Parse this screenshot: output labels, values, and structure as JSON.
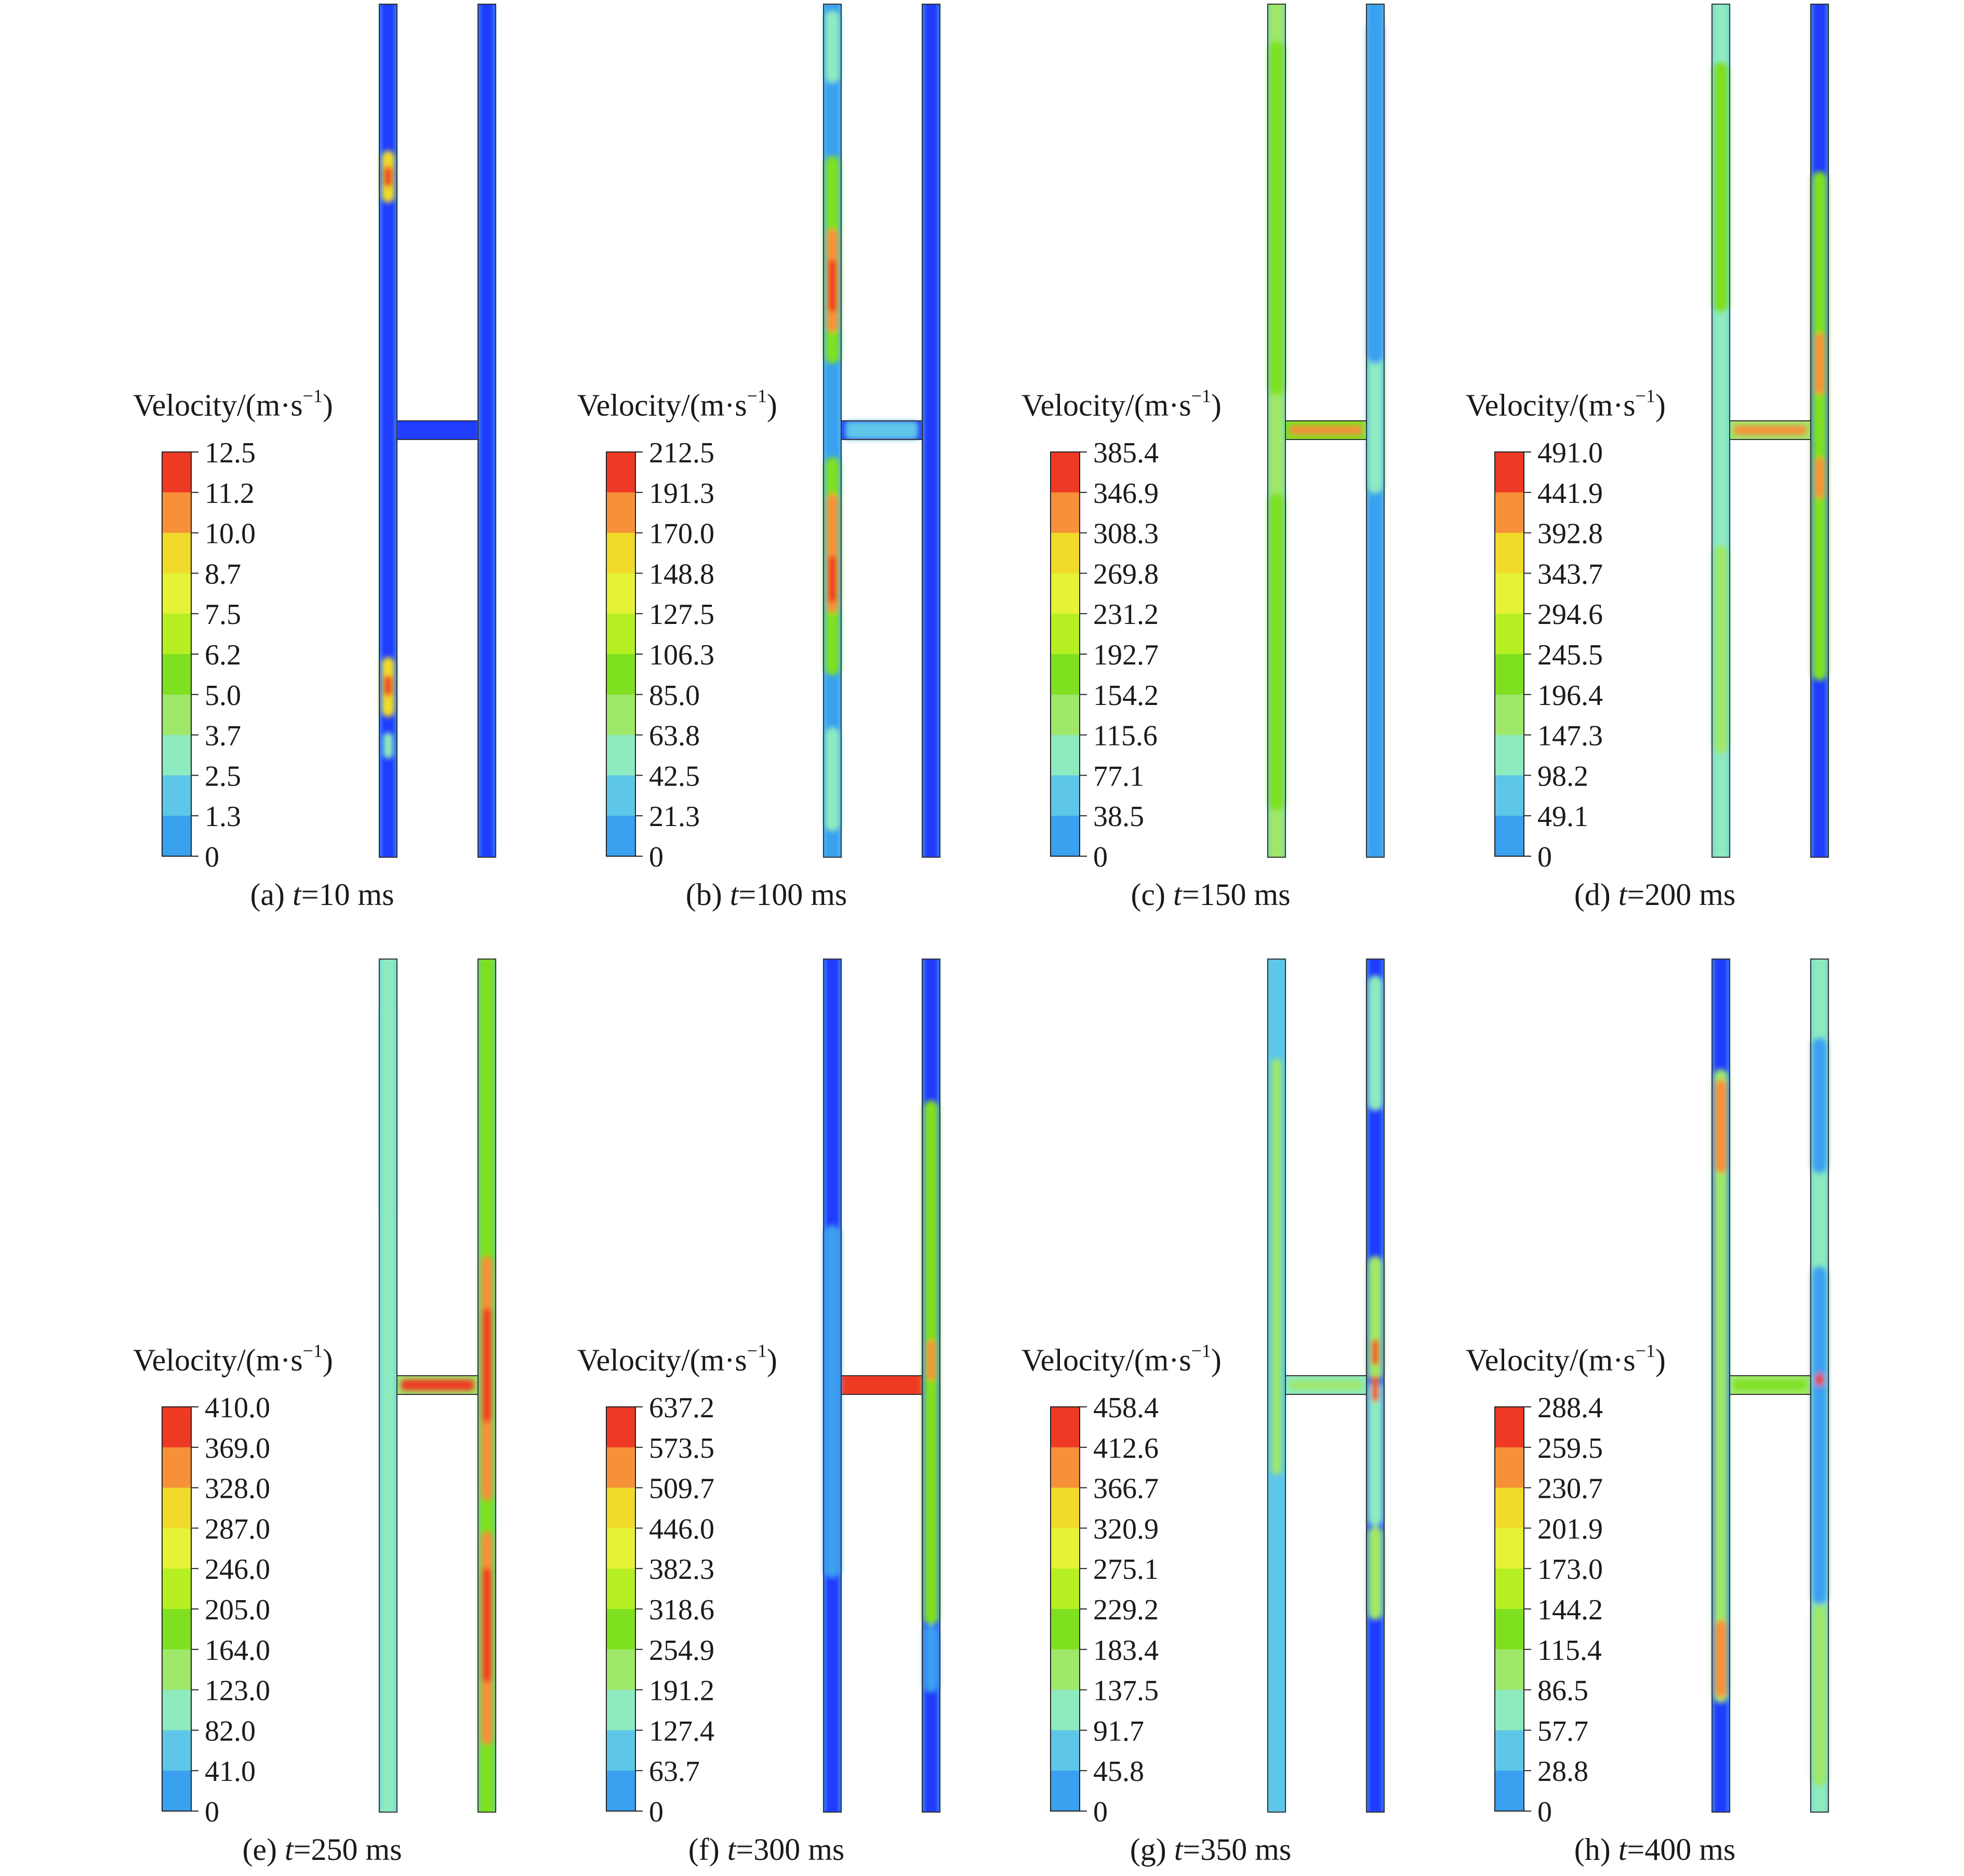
{
  "legend_title": "Velocity/(m·s",
  "legend_title_sup": "−1",
  "legend_title_end": ")",
  "colors": [
    "#1f3cff",
    "#3aa0f0",
    "#5ec7e8",
    "#8eeabf",
    "#9fe86a",
    "#7fe020",
    "#b6ef22",
    "#e5f236",
    "#f0da2a",
    "#f6913a",
    "#ee3a24"
  ],
  "panels": [
    {
      "label_prefix": "(a) ",
      "label_t": "t",
      "label_rest": "=10 ms",
      "ticks": [
        "12.5",
        "11.2",
        "10.0",
        "8.7",
        "7.5",
        "6.2",
        "5.0",
        "3.7",
        "2.5",
        "1.3",
        "0"
      ]
    },
    {
      "label_prefix": "(b) ",
      "label_t": "t",
      "label_rest": "=100 ms",
      "ticks": [
        "212.5",
        "191.3",
        "170.0",
        "148.8",
        "127.5",
        "106.3",
        "85.0",
        "63.8",
        "42.5",
        "21.3",
        "0"
      ]
    },
    {
      "label_prefix": "(c) ",
      "label_t": "t",
      "label_rest": "=150 ms",
      "ticks": [
        "385.4",
        "346.9",
        "308.3",
        "269.8",
        "231.2",
        "192.7",
        "154.2",
        "115.6",
        "77.1",
        "38.5",
        "0"
      ]
    },
    {
      "label_prefix": "(d) ",
      "label_t": "t",
      "label_rest": "=200 ms",
      "ticks": [
        "491.0",
        "441.9",
        "392.8",
        "343.7",
        "294.6",
        "245.5",
        "196.4",
        "147.3",
        "98.2",
        "49.1",
        "0"
      ]
    },
    {
      "label_prefix": "(e) ",
      "label_t": "t",
      "label_rest": "=250 ms",
      "ticks": [
        "410.0",
        "369.0",
        "328.0",
        "287.0",
        "246.0",
        "205.0",
        "164.0",
        "123.0",
        "82.0",
        "41.0",
        "0"
      ]
    },
    {
      "label_prefix": "(f) ",
      "label_t": "t",
      "label_rest": "=300 ms",
      "ticks": [
        "637.2",
        "573.5",
        "509.7",
        "446.0",
        "382.3",
        "318.6",
        "254.9",
        "191.2",
        "127.4",
        "63.7",
        "0"
      ]
    },
    {
      "label_prefix": "(g) ",
      "label_t": "t",
      "label_rest": "=350 ms",
      "ticks": [
        "458.4",
        "412.6",
        "366.7",
        "320.9",
        "275.1",
        "229.2",
        "183.4",
        "137.5",
        "91.7",
        "45.8",
        "0"
      ]
    },
    {
      "label_prefix": "(h) ",
      "label_t": "t",
      "label_rest": "=400 ms",
      "ticks": [
        "288.4",
        "259.5",
        "230.7",
        "201.9",
        "173.0",
        "144.2",
        "115.4",
        "86.5",
        "57.7",
        "28.8",
        "0"
      ]
    }
  ]
}
